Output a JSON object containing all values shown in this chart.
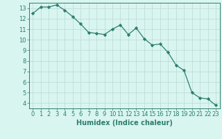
{
  "x": [
    0,
    1,
    2,
    3,
    4,
    5,
    6,
    7,
    8,
    9,
    10,
    11,
    12,
    13,
    14,
    15,
    16,
    17,
    18,
    19,
    20,
    21,
    22,
    23
  ],
  "y": [
    12.5,
    13.1,
    13.1,
    13.3,
    12.8,
    12.2,
    11.5,
    10.7,
    10.6,
    10.5,
    11.0,
    11.4,
    10.5,
    11.1,
    10.1,
    9.5,
    9.6,
    8.8,
    7.6,
    7.1,
    5.0,
    4.5,
    4.4,
    3.8
  ],
  "line_color": "#2d7d6e",
  "marker": "D",
  "marker_size": 2.2,
  "bg_color": "#d8f5f0",
  "grid_color": "#c0ddd8",
  "xlabel": "Humidex (Indice chaleur)",
  "xlim": [
    -0.5,
    23.5
  ],
  "ylim": [
    3.5,
    13.5
  ],
  "yticks": [
    4,
    5,
    6,
    7,
    8,
    9,
    10,
    11,
    12,
    13
  ],
  "xticks": [
    0,
    1,
    2,
    3,
    4,
    5,
    6,
    7,
    8,
    9,
    10,
    11,
    12,
    13,
    14,
    15,
    16,
    17,
    18,
    19,
    20,
    21,
    22,
    23
  ],
  "tick_color": "#2d7d6e",
  "label_fontsize": 6.0,
  "axis_fontsize": 7.0,
  "linewidth": 0.9
}
